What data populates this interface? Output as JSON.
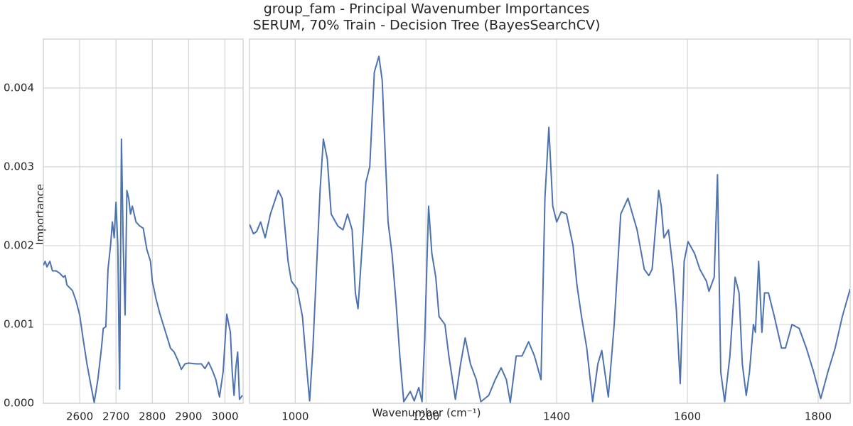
{
  "chart_data": {
    "type": "line",
    "title": "group_fam - Principal Wavenumber Importances",
    "subtitle": "SERUM, 70% Train - Decision Tree (BayesSearchCV)",
    "x_label": "Wavenumber (cm⁻¹)",
    "y_label": "Importance",
    "color": "#4c72b0",
    "grid": true,
    "ylim": [
      0,
      0.00462
    ],
    "yticks": [
      {
        "value": 0,
        "label": "0.000"
      },
      0.001,
      0.002,
      0.003,
      0.004
    ],
    "panels": [
      {
        "xlim": [
          2500,
          3050
        ],
        "xticks": [
          2600,
          2700,
          2800,
          2900,
          3000
        ],
        "x": [
          2500,
          2505,
          2510,
          2518,
          2525,
          2535,
          2545,
          2555,
          2560,
          2565,
          2580,
          2590,
          2600,
          2610,
          2620,
          2630,
          2640,
          2650,
          2660,
          2665,
          2672,
          2678,
          2685,
          2690,
          2695,
          2700,
          2705,
          2710,
          2715,
          2720,
          2725,
          2730,
          2735,
          2740,
          2745,
          2755,
          2765,
          2775,
          2785,
          2795,
          2800,
          2810,
          2820,
          2830,
          2840,
          2850,
          2860,
          2870,
          2880,
          2890,
          2900,
          2920,
          2935,
          2945,
          2955,
          2965,
          2975,
          2985,
          2995,
          3005,
          3015,
          3020,
          3025,
          3030,
          3035,
          3040,
          3048
        ],
        "values": [
          0.00175,
          0.0018,
          0.00173,
          0.0018,
          0.00168,
          0.00168,
          0.00165,
          0.0016,
          0.00162,
          0.0015,
          0.00143,
          0.0013,
          0.00112,
          0.0008,
          0.0005,
          0.00025,
          1e-05,
          0.0003,
          0.0007,
          0.00095,
          0.00097,
          0.0017,
          0.002,
          0.0023,
          0.0021,
          0.00255,
          0.002,
          0.00018,
          0.00335,
          0.002,
          0.00112,
          0.0027,
          0.0026,
          0.0024,
          0.0025,
          0.0023,
          0.00225,
          0.00222,
          0.00195,
          0.0018,
          0.00155,
          0.00133,
          0.00115,
          0.001,
          0.00085,
          0.0007,
          0.00065,
          0.00055,
          0.00043,
          0.0005,
          0.00051,
          0.0005,
          0.0005,
          0.00044,
          0.00052,
          0.00042,
          0.0003,
          8e-05,
          0.0004,
          0.00113,
          0.0009,
          0.0004,
          0.0001,
          0.00045,
          0.00065,
          5e-05,
          0.0001
        ]
      },
      {
        "xlim": [
          930,
          1849
        ],
        "xticks": [
          1000,
          1200,
          1400,
          1600,
          1800
        ],
        "x": [
          930,
          936,
          941,
          947,
          954,
          962,
          974,
          980,
          989,
          994,
          1003,
          1011,
          1018,
          1022,
          1027,
          1038,
          1043,
          1049,
          1055,
          1065,
          1073,
          1080,
          1087,
          1092,
          1096,
          1104,
          1108,
          1114,
          1121,
          1128,
          1133,
          1142,
          1148,
          1154,
          1160,
          1166,
          1176,
          1182,
          1189,
          1194,
          1198,
          1204,
          1209,
          1215,
          1220,
          1229,
          1235,
          1245,
          1253,
          1260,
          1268,
          1277,
          1284,
          1296,
          1306,
          1315,
          1323,
          1329,
          1338,
          1347,
          1357,
          1366,
          1376,
          1382,
          1388,
          1394,
          1400,
          1407,
          1415,
          1425,
          1431,
          1438,
          1446,
          1455,
          1463,
          1469,
          1479,
          1488,
          1498,
          1509,
          1523,
          1534,
          1541,
          1546,
          1551,
          1556,
          1560,
          1564,
          1571,
          1578,
          1583,
          1589,
          1595,
          1601,
          1611,
          1619,
          1629,
          1633,
          1641,
          1646,
          1651,
          1657,
          1665,
          1673,
          1679,
          1684,
          1690,
          1695,
          1701,
          1704,
          1709,
          1714,
          1718,
          1724,
          1733,
          1744,
          1750,
          1760,
          1771,
          1782,
          1793,
          1804,
          1815,
          1826,
          1837,
          1849
        ],
        "values": [
          0.00227,
          0.00215,
          0.00218,
          0.0023,
          0.0021,
          0.0024,
          0.0027,
          0.0026,
          0.0018,
          0.00155,
          0.00145,
          0.0011,
          0.0004,
          3e-05,
          0.0007,
          0.0027,
          0.00335,
          0.0031,
          0.0024,
          0.00225,
          0.0022,
          0.0024,
          0.0022,
          0.0014,
          0.0012,
          0.0022,
          0.0028,
          0.003,
          0.0042,
          0.0044,
          0.0041,
          0.0023,
          0.0019,
          0.0013,
          0.0006,
          2e-05,
          0.00015,
          3e-05,
          0.0002,
          2e-05,
          0.0008,
          0.0025,
          0.0019,
          0.0016,
          0.0011,
          0.001,
          0.0006,
          5e-05,
          0.0005,
          0.00083,
          0.0005,
          0.0003,
          2e-05,
          0.0001,
          0.0003,
          0.00045,
          0.0003,
          1e-05,
          0.0006,
          0.0006,
          0.00078,
          0.0006,
          0.0003,
          0.0026,
          0.0035,
          0.0025,
          0.0023,
          0.00243,
          0.0024,
          0.002,
          0.0015,
          0.0011,
          0.0007,
          2e-05,
          0.0005,
          0.00067,
          8e-05,
          0.001,
          0.0024,
          0.0026,
          0.0022,
          0.0017,
          0.00162,
          0.0017,
          0.0022,
          0.0027,
          0.0025,
          0.0021,
          0.0022,
          0.0017,
          0.0012,
          0.00025,
          0.0018,
          0.00205,
          0.0019,
          0.0017,
          0.00155,
          0.00142,
          0.0016,
          0.0029,
          0.0004,
          2e-05,
          0.0006,
          0.0016,
          0.0014,
          0.0005,
          0.0001,
          0.0004,
          0.001,
          0.0009,
          0.0018,
          0.0009,
          0.0014,
          0.0014,
          0.0011,
          0.0007,
          0.0007,
          0.001,
          0.00095,
          0.0007,
          0.0004,
          6e-05,
          0.0004,
          0.0007,
          0.0011,
          0.00145
        ]
      }
    ]
  }
}
